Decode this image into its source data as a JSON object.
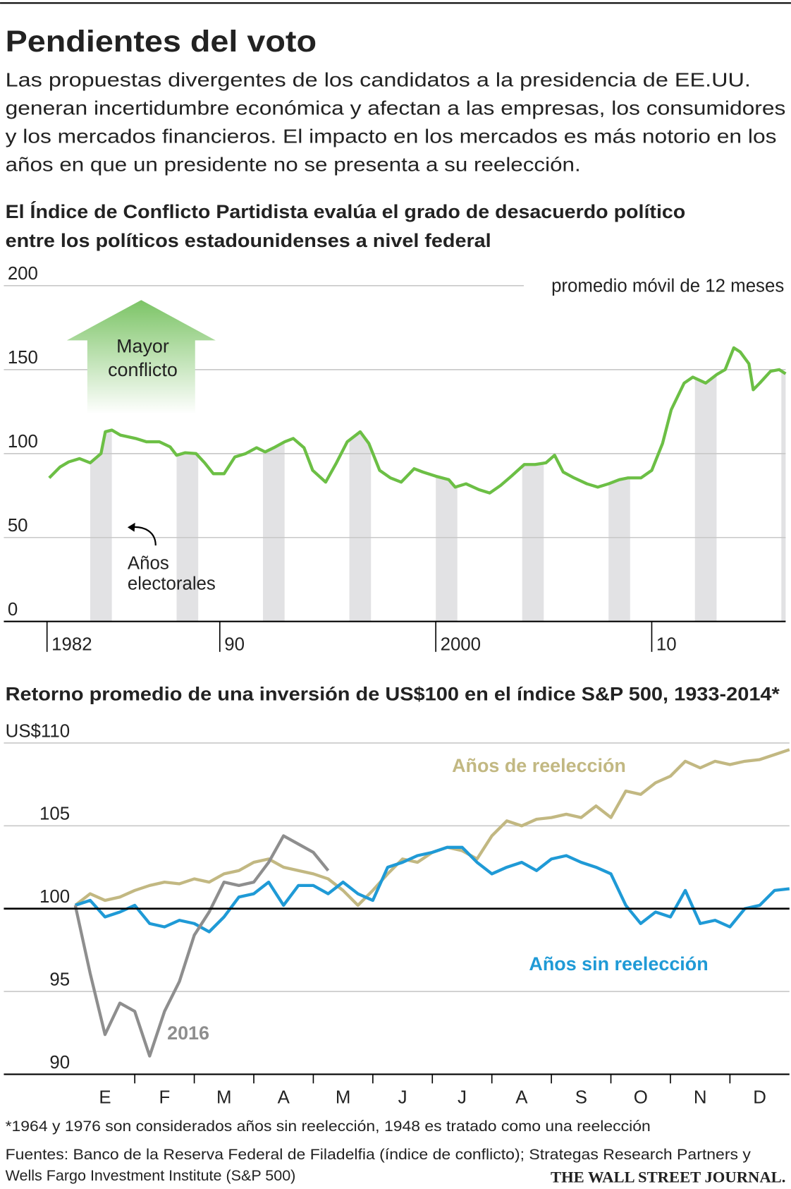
{
  "header": {
    "title": "Pendientes del voto",
    "subtitle": [
      "Las propuestas divergentes de los candidatos a la presidencia de EE.UU.",
      "generan incertidumbre económica y afectan a las empresas, los consumidores",
      "y los mercados financieros. El impacto en los mercados es más notorio en los",
      "años en que un presidente no se presenta a su reelección."
    ]
  },
  "chart_data": [
    {
      "type": "line",
      "title": [
        "El Índice de Conflicto Partidista evalúa el grado de desacuerdo político",
        "entre los políticos estadounidenses a nivel federal"
      ],
      "annotations": {
        "measure": "promedio móvil de 12 meses",
        "arrow": [
          "Mayor",
          "conflicto"
        ],
        "bands": [
          "Años",
          "electorales"
        ]
      },
      "x": [
        1982.1,
        1982.6,
        1983.0,
        1983.5,
        1984.0,
        1984.5,
        1984.7,
        1985.0,
        1985.4,
        1986.1,
        1986.6,
        1987.2,
        1987.7,
        1988.0,
        1988.4,
        1988.9,
        1989.3,
        1989.7,
        1990.2,
        1990.7,
        1991.2,
        1991.7,
        1992.1,
        1992.5,
        1993.0,
        1993.4,
        1993.9,
        1994.3,
        1994.9,
        1995.4,
        1995.9,
        1996.5,
        1996.9,
        1997.4,
        1997.9,
        1998.4,
        1999.0,
        1999.4,
        2000.0,
        2000.6,
        2000.9,
        2001.4,
        2002.0,
        2002.5,
        2003.0,
        2003.5,
        2004.1,
        2004.6,
        2005.1,
        2005.5,
        2005.9,
        2006.4,
        2007.0,
        2007.5,
        2008.0,
        2008.5,
        2008.9,
        2009.5,
        2010.0,
        2010.5,
        2010.9,
        2011.5,
        2011.9,
        2012.5,
        2013.0,
        2013.4,
        2013.8,
        2014.1,
        2014.5,
        2014.7,
        2015.0,
        2015.5,
        2015.9,
        2016.2
      ],
      "values": [
        85.5,
        92,
        95,
        97,
        94.5,
        100,
        113,
        114,
        111,
        109,
        107,
        107,
        104,
        99,
        100.5,
        100,
        94.5,
        88,
        88,
        98,
        100,
        103.5,
        101,
        103.5,
        107,
        109,
        103.5,
        90,
        83,
        94.5,
        107,
        113,
        106,
        90,
        85.5,
        83,
        91,
        89,
        86.5,
        84.5,
        80,
        82,
        78.5,
        76.5,
        81,
        86.5,
        93.5,
        93.5,
        94.5,
        99,
        89,
        85.5,
        82,
        80,
        82,
        84.5,
        85.5,
        85.5,
        90,
        106,
        126,
        142,
        145.5,
        142,
        147,
        150,
        163,
        160.5,
        153.5,
        138,
        142,
        149,
        150,
        147.5
      ],
      "color": "#6cbf45",
      "election_years": [
        1984,
        1988,
        1992,
        1996,
        2000,
        2004,
        2008,
        2012,
        2016
      ],
      "band_color": "#e2e2e4",
      "xlim": [
        1980,
        2016.2
      ],
      "xticks": [
        1982,
        {
          "value": 1990,
          "label": "90"
        },
        2000,
        {
          "value": 2010,
          "label": "10"
        }
      ],
      "ylim": [
        0,
        200
      ],
      "yticks": [
        0,
        50,
        100,
        150,
        200
      ],
      "grid": true
    },
    {
      "type": "line",
      "title": "Retorno promedio de una inversión de US$100 en el índice S&P 500, 1933-2014*",
      "categories": [
        "E",
        "F",
        "M",
        "A",
        "M",
        "J",
        "J",
        "A",
        "S",
        "O",
        "N",
        "D"
      ],
      "x": [
        0,
        0.25,
        0.5,
        0.75,
        1,
        1.25,
        1.5,
        1.75,
        2,
        2.25,
        2.5,
        2.75,
        3,
        3.25,
        3.5,
        3.75,
        4,
        4.25,
        4.5,
        4.75,
        5,
        5.25,
        5.5,
        5.75,
        6,
        6.25,
        6.5,
        6.75,
        7,
        7.25,
        7.5,
        7.75,
        8,
        8.25,
        8.5,
        8.75,
        9,
        9.25,
        9.5,
        9.75,
        10,
        10.25,
        10.5,
        10.75,
        11,
        11.25,
        11.5,
        11.75,
        12
      ],
      "series": [
        {
          "name": "Años de reelección",
          "color": "#c2b882",
          "values": [
            100.2,
            100.9,
            100.5,
            100.7,
            101.1,
            101.4,
            101.6,
            101.5,
            101.8,
            101.6,
            102.1,
            102.3,
            102.8,
            103.0,
            102.5,
            102.3,
            102.1,
            101.8,
            101.1,
            100.2,
            101.1,
            102.1,
            103.0,
            102.8,
            103.4,
            103.7,
            103.5,
            103.0,
            104.4,
            105.3,
            105.0,
            105.4,
            105.5,
            105.7,
            105.5,
            106.2,
            105.5,
            107.1,
            106.9,
            107.6,
            108.0,
            108.9,
            108.5,
            108.9,
            108.7,
            108.9,
            109.0,
            109.3,
            109.6
          ]
        },
        {
          "name": "Años sin reelección",
          "color": "#1f9ad6",
          "values": [
            100.2,
            100.5,
            99.5,
            99.8,
            100.2,
            99.1,
            98.9,
            99.3,
            99.1,
            98.6,
            99.5,
            100.7,
            100.9,
            101.6,
            100.2,
            101.4,
            101.4,
            100.9,
            101.6,
            100.9,
            100.5,
            102.5,
            102.8,
            103.2,
            103.4,
            103.7,
            103.7,
            102.8,
            102.1,
            102.5,
            102.8,
            102.3,
            103.0,
            103.2,
            102.8,
            102.5,
            102.1,
            100.2,
            99.1,
            99.8,
            99.5,
            101.1,
            99.1,
            99.3,
            98.9,
            100.0,
            100.2,
            101.1,
            101.2
          ]
        },
        {
          "name": "2016",
          "color": "#8e8e8e",
          "values": [
            100.2,
            96.1,
            92.4,
            94.3,
            93.8,
            91.1,
            93.8,
            95.6,
            98.4,
            99.8,
            101.6,
            101.4,
            101.6,
            102.8,
            104.4,
            103.9,
            103.4,
            102.3,
            null,
            null,
            null,
            null,
            null,
            null,
            null,
            null,
            null,
            null,
            null,
            null,
            null,
            null,
            null,
            null,
            null,
            null,
            null,
            null,
            null,
            null,
            null,
            null,
            null,
            null,
            null,
            null,
            null,
            null,
            null
          ]
        }
      ],
      "xlim": [
        -1.2,
        12
      ],
      "ylim": [
        90,
        110
      ],
      "baseline": 100,
      "yticks": [
        90,
        95,
        100,
        105,
        {
          "value": 110,
          "label": "US$110"
        }
      ],
      "grid": true
    }
  ],
  "footnote": "*1964 y 1976 son considerados años sin reelección, 1948 es tratado como una reelección",
  "sources": [
    "Fuentes: Banco de la Reserva Federal de Filadelfia (índice de conflicto); Strategas Research Partners y",
    "Wells Fargo Investment Institute (S&P 500)"
  ],
  "logo": "THE WALL STREET JOURNAL."
}
